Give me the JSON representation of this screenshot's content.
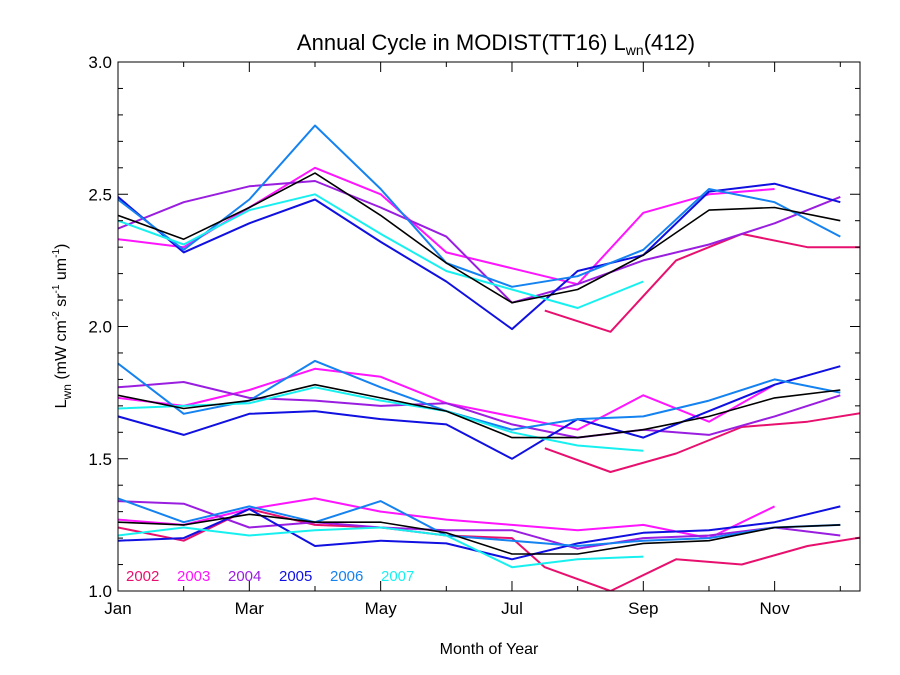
{
  "chart_data": {
    "type": "line",
    "title": {
      "main": "Annual Cycle in MODIST(TT16) L",
      "sub": "wn",
      "suffix": "(412)"
    },
    "xlabel": "Month of Year",
    "ylabel": {
      "parts": [
        {
          "t": "L",
          "s": "n"
        },
        {
          "t": "wn",
          "s": "sub"
        },
        {
          "t": " (mW cm",
          "s": "n"
        },
        {
          "t": "-2",
          "s": "sup"
        },
        {
          "t": " sr",
          "s": "n"
        },
        {
          "t": "-1",
          "s": "sup"
        },
        {
          "t": " um",
          "s": "n"
        },
        {
          "t": "-1",
          "s": "sup"
        },
        {
          "t": ")",
          "s": "n"
        }
      ]
    },
    "xlim": [
      1,
      12.3
    ],
    "ylim": [
      1.0,
      3.0
    ],
    "x_ticks": [
      {
        "v": 1,
        "label": "Jan"
      },
      {
        "v": 3,
        "label": "Mar"
      },
      {
        "v": 5,
        "label": "May"
      },
      {
        "v": 7,
        "label": "Jul"
      },
      {
        "v": 9,
        "label": "Sep"
      },
      {
        "v": 11,
        "label": "Nov"
      }
    ],
    "y_ticks": [
      {
        "v": 1.0,
        "label": "1.0"
      },
      {
        "v": 1.5,
        "label": "1.5"
      },
      {
        "v": 2.0,
        "label": "2.0"
      },
      {
        "v": 2.5,
        "label": "2.5"
      },
      {
        "v": 3.0,
        "label": "3.0"
      }
    ],
    "legend": [
      {
        "name": "2002",
        "color": "#e8106e"
      },
      {
        "name": "2003",
        "color": "#ff14ff"
      },
      {
        "name": "2004",
        "color": "#9a1ee0"
      },
      {
        "name": "2005",
        "color": "#1010e0"
      },
      {
        "name": "2006",
        "color": "#1482f0"
      },
      {
        "name": "2007",
        "color": "#18f0f0"
      }
    ],
    "legend_position": "bottom-left",
    "groups": [
      {
        "group": "upper",
        "series": [
          {
            "series": "2002",
            "color": "#e8106e",
            "x": [
              7.5,
              8.5,
              9.5,
              10.5,
              11.5,
              12.5
            ],
            "y": [
              2.06,
              1.98,
              2.25,
              2.35,
              2.3,
              2.3
            ]
          },
          {
            "series": "2003",
            "color": "#ff14ff",
            "x": [
              1,
              2,
              3,
              4,
              5,
              6,
              7,
              8,
              9,
              10,
              11
            ],
            "y": [
              2.33,
              2.3,
              2.45,
              2.6,
              2.5,
              2.28,
              2.22,
              2.16,
              2.43,
              2.5,
              2.52
            ]
          },
          {
            "series": "2004",
            "color": "#9a1ee0",
            "x": [
              1,
              2,
              3,
              4,
              5,
              6,
              7,
              8,
              9,
              10,
              11,
              12
            ],
            "y": [
              2.37,
              2.47,
              2.53,
              2.55,
              2.45,
              2.34,
              2.09,
              2.16,
              2.25,
              2.31,
              2.39,
              2.49
            ]
          },
          {
            "series": "2005",
            "color": "#1010e0",
            "x": [
              1,
              2,
              3,
              4,
              5,
              6,
              7,
              8,
              9,
              10,
              11,
              12
            ],
            "y": [
              2.49,
              2.28,
              2.39,
              2.48,
              2.32,
              2.17,
              1.99,
              2.21,
              2.27,
              2.51,
              2.54,
              2.47
            ]
          },
          {
            "series": "2006",
            "color": "#1482f0",
            "x": [
              1,
              2,
              3,
              4,
              5,
              6,
              7,
              8,
              9,
              10,
              11,
              12
            ],
            "y": [
              2.48,
              2.29,
              2.48,
              2.76,
              2.52,
              2.24,
              2.15,
              2.19,
              2.29,
              2.52,
              2.47,
              2.34
            ]
          },
          {
            "series": "2007",
            "color": "#18f0f0",
            "x": [
              1,
              2,
              3,
              4,
              5,
              6,
              7,
              8,
              9
            ],
            "y": [
              2.4,
              2.31,
              2.44,
              2.5,
              2.35,
              2.21,
              2.14,
              2.07,
              2.17
            ]
          },
          {
            "series": "mean",
            "color": "#000000",
            "x": [
              1,
              2,
              3,
              4,
              5,
              6,
              7,
              8,
              9,
              10,
              11,
              12
            ],
            "y": [
              2.42,
              2.33,
              2.45,
              2.58,
              2.42,
              2.24,
              2.09,
              2.14,
              2.27,
              2.44,
              2.45,
              2.4
            ]
          }
        ]
      },
      {
        "group": "middle",
        "series": [
          {
            "series": "2002",
            "color": "#e8106e",
            "x": [
              7.5,
              8.5,
              9.5,
              10.5,
              11.5,
              12.5
            ],
            "y": [
              1.54,
              1.45,
              1.52,
              1.62,
              1.64,
              1.68
            ]
          },
          {
            "series": "2003",
            "color": "#ff14ff",
            "x": [
              1,
              2,
              3,
              4,
              5,
              6,
              7,
              8,
              9,
              10,
              11
            ],
            "y": [
              1.73,
              1.7,
              1.76,
              1.84,
              1.81,
              1.71,
              1.66,
              1.61,
              1.74,
              1.64,
              1.78
            ]
          },
          {
            "series": "2004",
            "color": "#9a1ee0",
            "x": [
              1,
              2,
              3,
              4,
              5,
              6,
              7,
              8,
              9,
              10,
              11,
              12
            ],
            "y": [
              1.77,
              1.79,
              1.73,
              1.72,
              1.7,
              1.71,
              1.63,
              1.58,
              1.61,
              1.59,
              1.66,
              1.74
            ]
          },
          {
            "series": "2005",
            "color": "#1010e0",
            "x": [
              1,
              2,
              3,
              4,
              5,
              6,
              7,
              8,
              9,
              10,
              11,
              12
            ],
            "y": [
              1.66,
              1.59,
              1.67,
              1.68,
              1.65,
              1.63,
              1.5,
              1.65,
              1.58,
              1.68,
              1.78,
              1.85
            ]
          },
          {
            "series": "2006",
            "color": "#1482f0",
            "x": [
              1,
              2,
              3,
              4,
              5,
              6,
              7,
              8,
              9,
              10,
              11,
              12
            ],
            "y": [
              1.86,
              1.67,
              1.72,
              1.87,
              1.77,
              1.68,
              1.61,
              1.65,
              1.66,
              1.72,
              1.8,
              1.75
            ]
          },
          {
            "series": "2007",
            "color": "#18f0f0",
            "x": [
              1,
              2,
              3,
              4,
              5,
              6,
              7,
              8,
              9
            ],
            "y": [
              1.69,
              1.7,
              1.71,
              1.77,
              1.72,
              1.68,
              1.6,
              1.55,
              1.53
            ]
          },
          {
            "series": "mean",
            "color": "#000000",
            "x": [
              1,
              2,
              3,
              4,
              5,
              6,
              7,
              8,
              9,
              10,
              11,
              12
            ],
            "y": [
              1.74,
              1.69,
              1.72,
              1.78,
              1.73,
              1.68,
              1.58,
              1.58,
              1.61,
              1.66,
              1.73,
              1.76
            ]
          }
        ]
      },
      {
        "group": "lower",
        "series": [
          {
            "series": "2002",
            "color": "#e8106e",
            "x": [
              1,
              2,
              3,
              4,
              5,
              6,
              7,
              7.5,
              8.5,
              9.5,
              10.5,
              11.5,
              12.5
            ],
            "y": [
              1.24,
              1.19,
              1.31,
              1.25,
              1.24,
              1.21,
              1.2,
              1.09,
              1.0,
              1.12,
              1.1,
              1.17,
              1.21
            ]
          },
          {
            "series": "2003",
            "color": "#ff14ff",
            "x": [
              1,
              2,
              3,
              4,
              5,
              6,
              7,
              8,
              9,
              10,
              11
            ],
            "y": [
              1.27,
              1.25,
              1.31,
              1.35,
              1.3,
              1.27,
              1.25,
              1.23,
              1.25,
              1.2,
              1.32
            ]
          },
          {
            "series": "2004",
            "color": "#9a1ee0",
            "x": [
              1,
              2,
              3,
              4,
              5,
              6,
              7,
              8,
              9,
              10,
              11,
              12
            ],
            "y": [
              1.34,
              1.33,
              1.24,
              1.26,
              1.24,
              1.23,
              1.23,
              1.16,
              1.2,
              1.21,
              1.24,
              1.21
            ]
          },
          {
            "series": "2005",
            "color": "#1010e0",
            "x": [
              1,
              2,
              3,
              4,
              5,
              6,
              7,
              8,
              9,
              10,
              11,
              12
            ],
            "y": [
              1.19,
              1.2,
              1.31,
              1.17,
              1.19,
              1.18,
              1.12,
              1.18,
              1.22,
              1.23,
              1.26,
              1.32
            ]
          },
          {
            "series": "2006",
            "color": "#1482f0",
            "x": [
              1,
              2,
              3,
              4,
              5,
              6,
              7,
              8,
              9,
              10,
              11,
              12
            ],
            "y": [
              1.35,
              1.26,
              1.32,
              1.26,
              1.34,
              1.21,
              1.19,
              1.17,
              1.19,
              1.2,
              1.24,
              1.25
            ]
          },
          {
            "series": "2007",
            "color": "#18f0f0",
            "x": [
              1,
              2,
              3,
              4,
              5,
              6,
              7,
              8,
              9
            ],
            "y": [
              1.21,
              1.24,
              1.21,
              1.23,
              1.24,
              1.21,
              1.09,
              1.12,
              1.13
            ]
          },
          {
            "series": "mean",
            "color": "#000000",
            "x": [
              1,
              2,
              3,
              4,
              5,
              6,
              7,
              8,
              9,
              10,
              11,
              12
            ],
            "y": [
              1.26,
              1.25,
              1.29,
              1.26,
              1.26,
              1.22,
              1.14,
              1.14,
              1.18,
              1.19,
              1.24,
              1.25
            ]
          }
        ]
      }
    ]
  }
}
